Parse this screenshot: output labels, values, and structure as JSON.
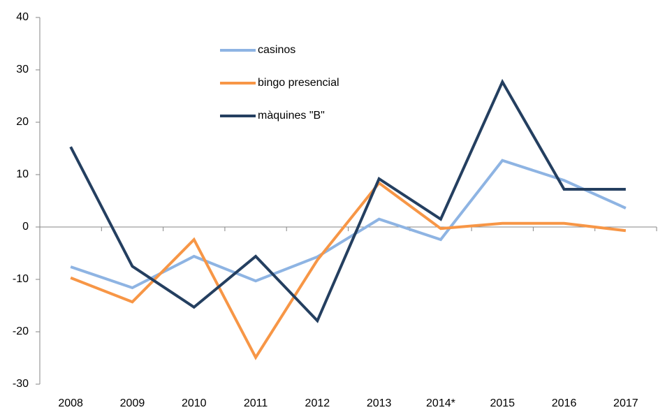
{
  "chart_data": {
    "type": "line",
    "categories": [
      "2008",
      "2009",
      "2010",
      "2011",
      "2012",
      "2013",
      "2014*",
      "2015",
      "2016",
      "2017"
    ],
    "series": [
      {
        "name": "casinos",
        "color": "#8eb4e3",
        "values": [
          -7.6,
          -11.6,
          -5.6,
          -10.3,
          -5.7,
          1.5,
          -2.4,
          12.7,
          8.9,
          3.6
        ]
      },
      {
        "name": "bingo presencial",
        "color": "#f79646",
        "values": [
          -9.7,
          -14.3,
          -2.4,
          -24.9,
          -6.3,
          8.4,
          -0.3,
          0.7,
          0.7,
          -0.7
        ]
      },
      {
        "name": "màquines \"B\"",
        "color": "#243f60",
        "values": [
          15.3,
          -7.5,
          -15.3,
          -5.6,
          -17.9,
          9.2,
          1.5,
          27.7,
          7.2,
          7.2
        ]
      }
    ],
    "ylim": [
      -30,
      40
    ],
    "yticks": [
      -30,
      -20,
      -10,
      0,
      10,
      20,
      30,
      40
    ]
  }
}
